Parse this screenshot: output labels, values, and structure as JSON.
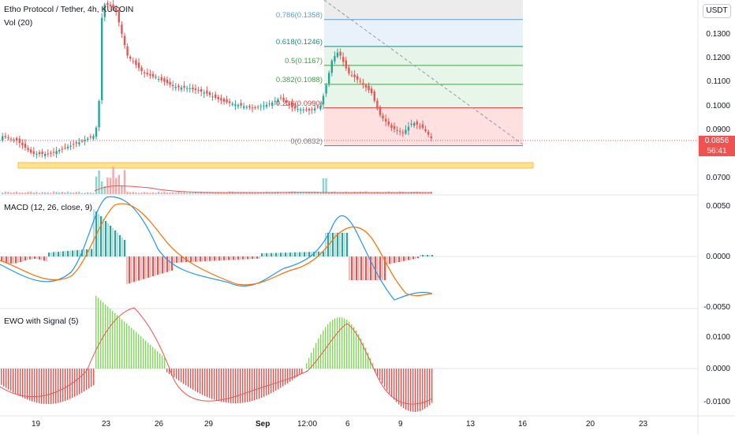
{
  "header": {
    "symbol_title": "Etho Protocol / Tether, 4h, KUCOIN",
    "volume_label": "Vol (20)",
    "currency": "USDT"
  },
  "price_axis": {
    "ticks": [
      "0.1300",
      "0.1200",
      "0.1100",
      "0.1000",
      "0.0900",
      "0.0700"
    ],
    "last_price": "0.0856",
    "countdown": "56:41"
  },
  "fib_levels": [
    {
      "label": "0.786(0.1358)",
      "value": 0.1358,
      "color": "#5b9bd5"
    },
    {
      "label": "0.618(0.1246)",
      "value": 0.1246,
      "color": "#1e8a7a"
    },
    {
      "label": "0.5(0.1167)",
      "value": 0.1167,
      "color": "#43a047"
    },
    {
      "label": "0.382(0.1088)",
      "value": 0.1088,
      "color": "#43a047"
    },
    {
      "label": "0.236(0.0990)",
      "value": 0.099,
      "color": "#e53935"
    },
    {
      "label": "0(0.0832)",
      "value": 0.0832,
      "color": "#787b86"
    }
  ],
  "macd": {
    "label": "MACD (12, 26, close, 9)",
    "ticks": [
      "0.0050",
      "0.0000",
      "-0.0050"
    ]
  },
  "ewo": {
    "label": "EWO with Signal (5)",
    "ticks": [
      "0.0100",
      "0.0000",
      "-0.0100"
    ]
  },
  "time_axis": [
    "19",
    "23",
    "26",
    "29",
    "Sep",
    "12:00",
    "6",
    "9",
    "13",
    "16",
    "20",
    "23"
  ],
  "colors": {
    "up": "#26a69a",
    "down": "#ef5350",
    "macd_line": "#2196f3",
    "signal_line": "#ff6d00",
    "ewo_up": "#7ed957",
    "ewo_down": "#ef5350",
    "support_zone": "#ffe082"
  }
}
